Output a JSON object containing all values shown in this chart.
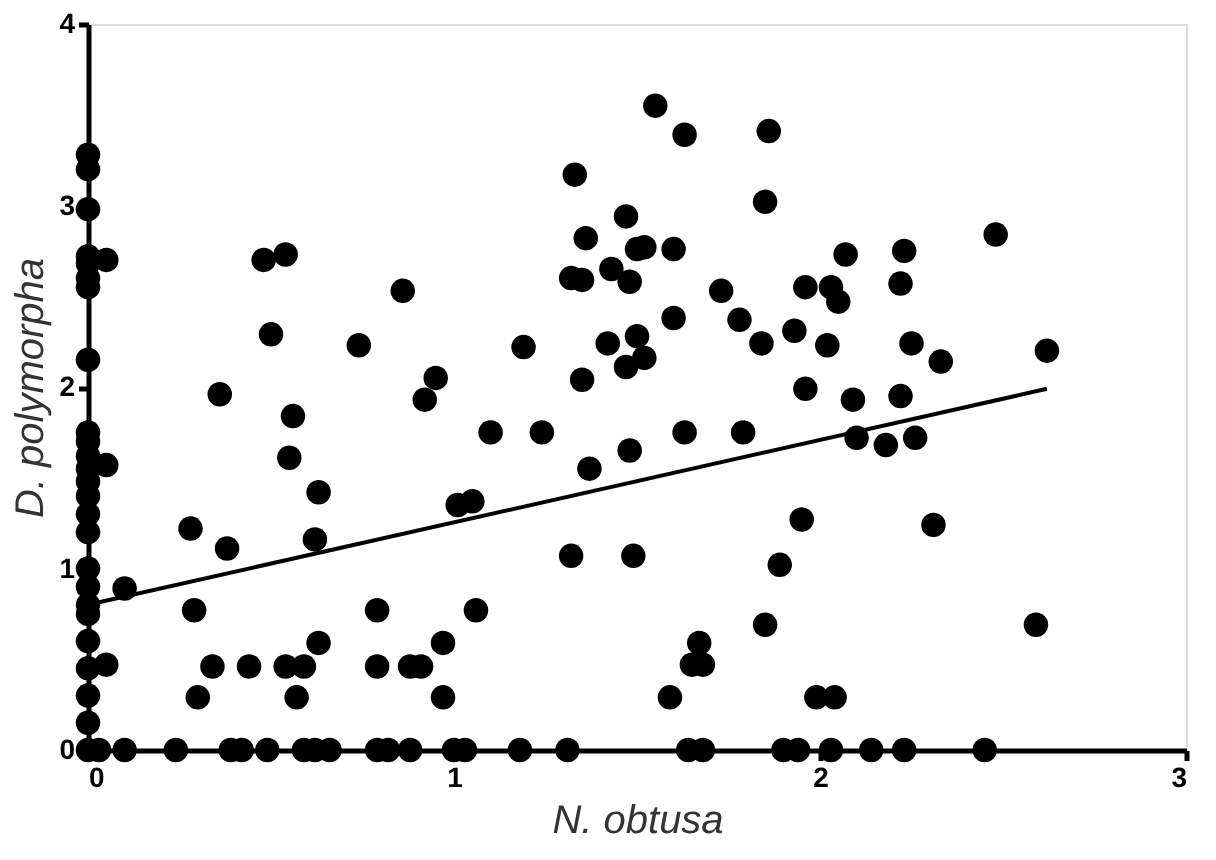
{
  "chart_data": {
    "type": "scatter",
    "xlabel": "N. obtusa",
    "ylabel": "D. polymorpha",
    "xlim": [
      0,
      3
    ],
    "ylim": [
      0,
      4
    ],
    "xticks": [
      0,
      1,
      2,
      3
    ],
    "yticks": [
      0,
      1,
      2,
      3,
      4
    ],
    "grid": false,
    "marker": "circle",
    "series": [
      {
        "color": "#000000",
        "x": [
          0,
          0,
          0,
          0,
          0,
          0,
          0,
          0,
          0,
          0,
          0,
          0,
          0,
          0,
          0,
          0,
          0,
          0,
          0,
          0,
          0,
          0,
          0,
          0,
          0,
          0.05,
          0.05,
          0.1,
          0.05,
          0.48,
          0.54,
          0.5,
          0.36,
          0.56,
          0.55,
          0.63,
          0.62,
          0.28,
          0.38,
          0.29,
          0.34,
          0.44,
          0.54,
          0.59,
          0.63,
          0.57,
          0.3,
          0.79,
          0.79,
          0.88,
          0.91,
          0.97,
          0.97,
          0.86,
          0.74,
          0.95,
          0.92,
          1.01,
          0.03,
          0.1,
          0.24,
          0.39,
          0.42,
          0.49,
          0.59,
          0.62,
          0.66,
          0.79,
          0.82,
          0.88,
          1.0,
          1.55,
          1.63,
          1.86,
          1.85,
          1.33,
          1.47,
          1.36,
          1.5,
          1.52,
          1.6,
          1.32,
          1.35,
          1.43,
          1.48,
          1.73,
          1.78,
          1.84,
          1.6,
          1.93,
          1.96,
          1.96,
          1.19,
          1.42,
          1.5,
          1.52,
          1.47,
          1.35,
          1.1,
          1.24,
          1.63,
          1.79,
          1.37,
          1.48,
          1.05,
          1.32,
          1.49,
          1.06,
          1.95,
          1.89,
          1.85,
          1.67,
          1.65,
          1.68,
          1.59,
          1.99,
          1.03,
          1.18,
          1.31,
          1.64,
          1.68,
          1.9,
          1.94,
          2.48,
          2.07,
          2.23,
          2.22,
          2.03,
          2.05,
          2.02,
          2.25,
          2.33,
          2.62,
          2.09,
          2.22,
          2.1,
          2.18,
          2.26,
          2.31,
          2.59,
          2.04,
          2.03,
          2.14,
          2.23,
          2.45
        ],
        "values": [
          3.28,
          3.2,
          2.98,
          2.72,
          2.68,
          2.6,
          2.55,
          2.15,
          1.75,
          1.7,
          1.62,
          1.55,
          1.48,
          1.4,
          1.3,
          1.2,
          1.0,
          0.9,
          0.8,
          0.75,
          0.6,
          0.45,
          0.3,
          0.15,
          0,
          2.7,
          1.57,
          0.89,
          0.47,
          2.7,
          2.73,
          2.29,
          1.96,
          1.84,
          1.61,
          1.42,
          1.16,
          1.22,
          1.11,
          0.77,
          0.46,
          0.46,
          0.46,
          0.46,
          0.59,
          0.29,
          0.29,
          0.77,
          0.46,
          0.46,
          0.46,
          0.59,
          0.29,
          2.53,
          2.23,
          2.05,
          1.93,
          1.35,
          0,
          0,
          0,
          0,
          0,
          0,
          0,
          0,
          0,
          0,
          0,
          0,
          0,
          3.55,
          3.39,
          3.41,
          3.02,
          3.17,
          2.94,
          2.82,
          2.76,
          2.77,
          2.76,
          2.6,
          2.59,
          2.65,
          2.58,
          2.53,
          2.37,
          2.24,
          2.38,
          2.31,
          2.55,
          1.99,
          2.22,
          2.24,
          2.28,
          2.16,
          2.11,
          2.04,
          1.75,
          1.75,
          1.75,
          1.75,
          1.55,
          1.65,
          1.37,
          1.07,
          1.07,
          0.77,
          1.27,
          1.02,
          0.69,
          0.59,
          0.47,
          0.47,
          0.29,
          0.29,
          0,
          0,
          0,
          0,
          0,
          0,
          0,
          2.84,
          2.73,
          2.75,
          2.57,
          2.55,
          2.47,
          2.23,
          2.24,
          2.14,
          2.2,
          1.93,
          1.95,
          1.72,
          1.68,
          1.72,
          1.24,
          0.69,
          0.29,
          0,
          0,
          0,
          0
        ]
      },
      {
        "type": "line",
        "color": "#000000",
        "marker": "none",
        "x": [
          0,
          2.62
        ],
        "values": [
          0.8,
          1.99
        ]
      }
    ]
  }
}
